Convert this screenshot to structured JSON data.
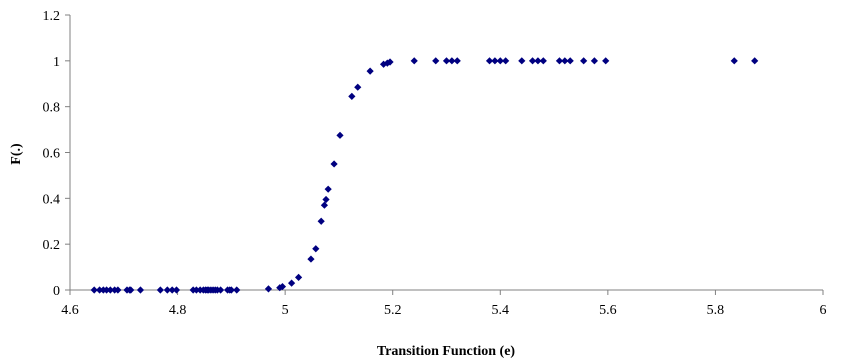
{
  "chart_data": {
    "type": "scatter",
    "title": "",
    "xlabel": "Transition Function (e)",
    "ylabel": "F(.)",
    "xlim": [
      4.6,
      6
    ],
    "ylim": [
      0,
      1.2
    ],
    "x_ticks": [
      "4.6",
      "4.8",
      "5",
      "5.2",
      "5.4",
      "5.6",
      "5.8",
      "6"
    ],
    "y_ticks": [
      "0",
      "0.2",
      "0.4",
      "0.6",
      "0.8",
      "1",
      "1.2"
    ],
    "grid": false,
    "legend": "none",
    "marker": "diamond",
    "marker_color": "#000080",
    "series": [
      {
        "points": [
          [
            4.645,
            0
          ],
          [
            4.655,
            0
          ],
          [
            4.662,
            0
          ],
          [
            4.668,
            0
          ],
          [
            4.675,
            0
          ],
          [
            4.683,
            0
          ],
          [
            4.689,
            0
          ],
          [
            4.706,
            0
          ],
          [
            4.711,
            0
          ],
          [
            4.713,
            0
          ],
          [
            4.731,
            0
          ],
          [
            4.768,
            0
          ],
          [
            4.781,
            0
          ],
          [
            4.79,
            0
          ],
          [
            4.798,
            0
          ],
          [
            4.829,
            0
          ],
          [
            4.835,
            0
          ],
          [
            4.842,
            0
          ],
          [
            4.848,
            0
          ],
          [
            4.852,
            0
          ],
          [
            4.855,
            0
          ],
          [
            4.858,
            0
          ],
          [
            4.862,
            0
          ],
          [
            4.866,
            0
          ],
          [
            4.87,
            0
          ],
          [
            4.874,
            0
          ],
          [
            4.88,
            0
          ],
          [
            4.893,
            0
          ],
          [
            4.897,
            0
          ],
          [
            4.9,
            0
          ],
          [
            4.91,
            0
          ],
          [
            4.969,
            0.005
          ],
          [
            4.99,
            0.01
          ],
          [
            4.995,
            0.015
          ],
          [
            5.012,
            0.03
          ],
          [
            5.025,
            0.055
          ],
          [
            5.048,
            0.135
          ],
          [
            5.057,
            0.18
          ],
          [
            5.067,
            0.3
          ],
          [
            5.073,
            0.37
          ],
          [
            5.076,
            0.395
          ],
          [
            5.08,
            0.44
          ],
          [
            5.091,
            0.55
          ],
          [
            5.102,
            0.675
          ],
          [
            5.124,
            0.845
          ],
          [
            5.135,
            0.885
          ],
          [
            5.158,
            0.955
          ],
          [
            5.183,
            0.985
          ],
          [
            5.19,
            0.99
          ],
          [
            5.195,
            0.995
          ],
          [
            5.24,
            1
          ],
          [
            5.28,
            1
          ],
          [
            5.3,
            1
          ],
          [
            5.31,
            1
          ],
          [
            5.32,
            1
          ],
          [
            5.38,
            1
          ],
          [
            5.39,
            1
          ],
          [
            5.4,
            1
          ],
          [
            5.41,
            1
          ],
          [
            5.44,
            1
          ],
          [
            5.46,
            1
          ],
          [
            5.47,
            1
          ],
          [
            5.48,
            1
          ],
          [
            5.51,
            1
          ],
          [
            5.52,
            1
          ],
          [
            5.53,
            1
          ],
          [
            5.555,
            1
          ],
          [
            5.575,
            1
          ],
          [
            5.596,
            1
          ],
          [
            5.835,
            1
          ],
          [
            5.873,
            1
          ]
        ]
      }
    ]
  }
}
